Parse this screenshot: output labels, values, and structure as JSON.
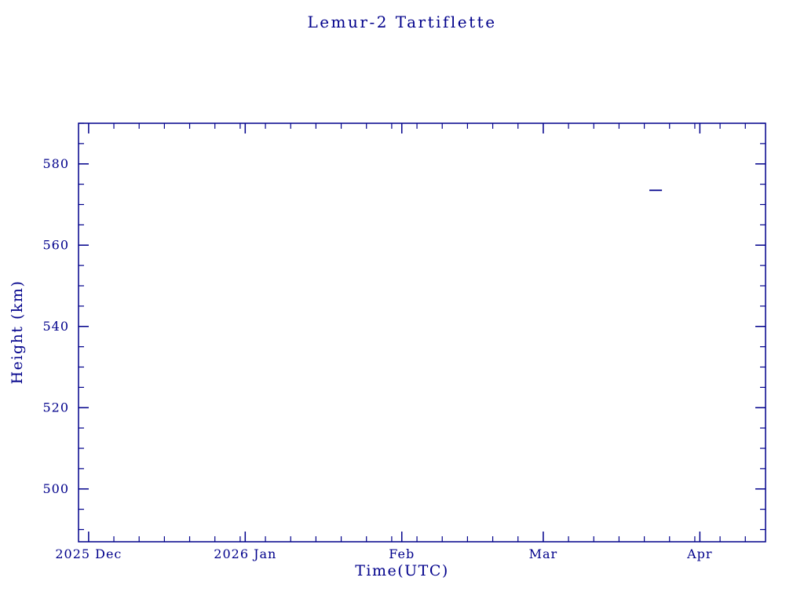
{
  "page": {
    "background": "#ffffff"
  },
  "chart_data": {
    "type": "line",
    "title": "Lemur-2 Tartiflette",
    "xlabel": "Time(UTC)",
    "ylabel": "Height (km)",
    "color": "#00008b",
    "grid": false,
    "legend": false,
    "x_axis": {
      "unit": "days since 2025-12-01",
      "min": -2,
      "max": 134,
      "major_ticks": [
        {
          "label": "2025 Dec",
          "day": 0
        },
        {
          "label": "2026 Jan",
          "day": 31
        },
        {
          "label": "Feb",
          "day": 62
        },
        {
          "label": "Mar",
          "day": 90
        },
        {
          "label": "Apr",
          "day": 121
        }
      ],
      "minor_tick_interval_days": 5
    },
    "y_axis": {
      "min": 487,
      "max": 590,
      "major_ticks": [
        500,
        520,
        540,
        560,
        580
      ],
      "minor_tick_interval": 5
    },
    "series": [
      {
        "name": "height",
        "points": [
          {
            "day": 111,
            "km": 573.5
          },
          {
            "day": 113.5,
            "km": 573.5
          }
        ]
      }
    ]
  }
}
